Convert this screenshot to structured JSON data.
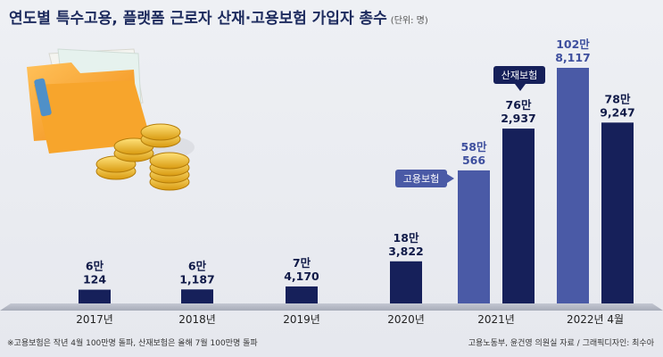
{
  "title": "연도별 특수고용, 플랫폼 근로자 산재·고용보험 가입자 총수",
  "unit": "(단위: 명)",
  "footnote": "※고용보험은 작년 4월 100만명 돌파, 산재보험은 올해 7월 100만명 돌파",
  "source": "고용노동부, 윤건영 의원실 자료 / 그래픽디자인: 최수아",
  "colors": {
    "employment": "#4a5aa6",
    "industrial": "#16205a",
    "label_employment": "#3e4f9e",
    "label_industrial": "#101a48",
    "baseline": "#b8bcc8"
  },
  "chart_data": {
    "type": "bar",
    "title": "연도별 특수고용, 플랫폼 근로자 산재·고용보험 가입자 총수",
    "ylabel": "(단위: 명)",
    "categories": [
      "2017년",
      "2018년",
      "2019년",
      "2020년",
      "2021년",
      "2022년 4월"
    ],
    "series": [
      {
        "name": "고용보험",
        "values": [
          null,
          null,
          null,
          null,
          580566,
          1028117
        ],
        "labels_top": [
          "",
          "",
          "",
          "",
          "58만",
          "102만"
        ],
        "labels_bottom": [
          "",
          "",
          "",
          "",
          "566",
          "8,117"
        ]
      },
      {
        "name": "산재보험",
        "values": [
          60124,
          61187,
          74170,
          183822,
          762937,
          789247
        ],
        "labels_top": [
          "6만",
          "6만",
          "7만",
          "18만",
          "76만",
          "78만"
        ],
        "labels_bottom": [
          "124",
          "1,187",
          "4,170",
          "3,822",
          "2,937",
          "9,247"
        ]
      }
    ],
    "callouts": {
      "employment": "고용보험",
      "industrial": "산재보험"
    },
    "ylim": [
      0,
      1028117
    ]
  }
}
